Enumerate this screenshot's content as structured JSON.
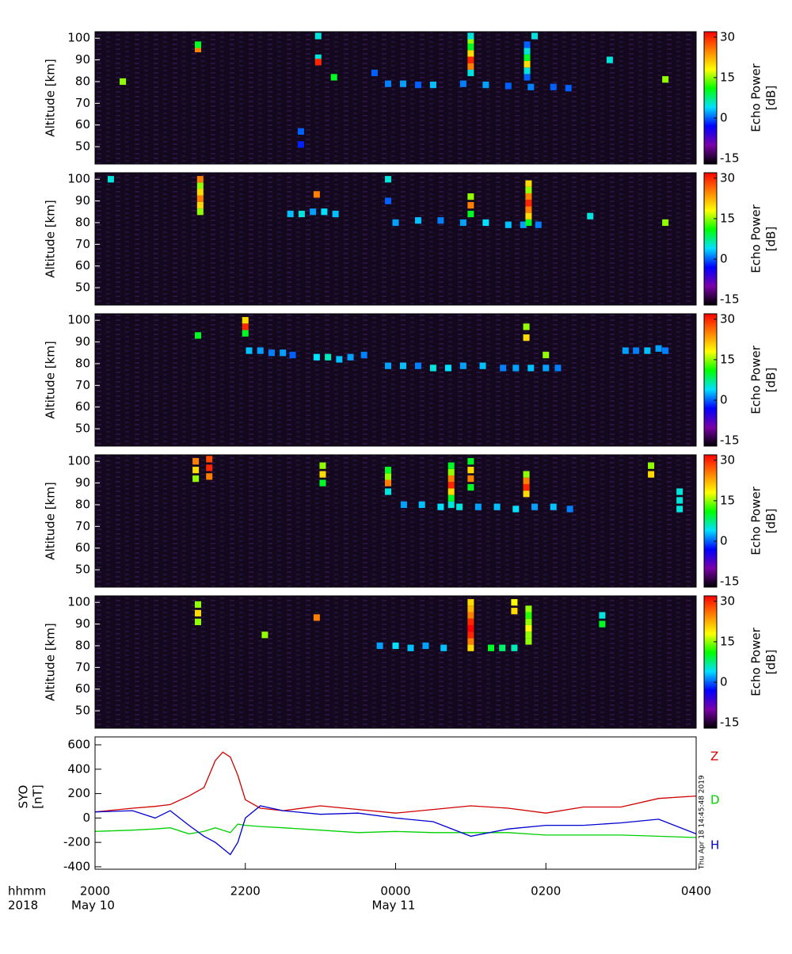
{
  "chart_data": [
    {
      "type": "heatmap",
      "ylabel": "Altitude [km]",
      "colorbar_label": [
        "Echo Power",
        "[dB]"
      ],
      "xlim": [
        0,
        8
      ],
      "ylim": [
        42,
        103
      ],
      "yticks": [
        50,
        60,
        70,
        80,
        90,
        100
      ],
      "clim": [
        -17,
        32
      ],
      "cticks": [
        -15,
        0,
        15,
        30
      ],
      "colormap": [
        "#000000",
        "#7a00a8",
        "#0000ff",
        "#00e0ff",
        "#00ff00",
        "#ffff00",
        "#ff8000",
        "#ff0000"
      ],
      "time": [
        3.9,
        4.1,
        4.3,
        4.5,
        4.9,
        5.2,
        5.5,
        5.8,
        6.1,
        6.3,
        5.0,
        5.0,
        5.0,
        5.0,
        5.0,
        5.0,
        5.0,
        5.75,
        5.75,
        5.75,
        5.75,
        5.75,
        5.75,
        0.37,
        1.37,
        1.37,
        2.97,
        2.97,
        2.97,
        3.18,
        3.72,
        7.59,
        2.74,
        2.74,
        6.85,
        5.85
      ],
      "altitude": [
        79,
        79,
        78.5,
        78.5,
        79,
        78.5,
        78,
        77.5,
        77.5,
        77,
        84,
        87,
        90,
        93,
        96,
        99,
        101,
        82,
        85,
        88,
        91,
        94,
        97,
        80,
        95,
        97,
        101,
        91,
        89,
        82,
        84,
        81,
        51,
        57,
        90,
        101
      ],
      "power": [
        1,
        2,
        0,
        3,
        1,
        2,
        0,
        1,
        0,
        0,
        5,
        25,
        30,
        20,
        10,
        15,
        5,
        0,
        5,
        20,
        10,
        5,
        0,
        15,
        25,
        10,
        5,
        5,
        30,
        10,
        0,
        15,
        -2,
        0,
        5,
        5
      ]
    },
    {
      "type": "heatmap",
      "ylabel": "Altitude [km]",
      "colorbar_label": [
        "Echo Power",
        "[dB]"
      ],
      "xlim": [
        0,
        8
      ],
      "ylim": [
        42,
        103
      ],
      "yticks": [
        50,
        60,
        70,
        80,
        90,
        100
      ],
      "clim": [
        -17,
        32
      ],
      "cticks": [
        -15,
        0,
        15,
        30
      ],
      "colormap": [
        "#000000",
        "#7a00a8",
        "#0000ff",
        "#00e0ff",
        "#00ff00",
        "#ffff00",
        "#ff8000",
        "#ff0000"
      ],
      "time": [
        2.6,
        2.75,
        2.9,
        3.05,
        3.2,
        4.0,
        4.3,
        4.6,
        4.9,
        5.2,
        5.5,
        5.7,
        5.9,
        1.4,
        1.4,
        1.4,
        1.4,
        1.4,
        1.4,
        5.77,
        5.77,
        5.77,
        5.77,
        5.77,
        5.77,
        5.77,
        5.0,
        5.0,
        5.0,
        3.9,
        3.9,
        2.95,
        7.59,
        0.21,
        6.59
      ],
      "altitude": [
        84,
        84,
        85,
        85,
        84,
        80,
        81,
        81,
        80,
        80,
        79,
        79,
        79,
        85,
        88,
        91,
        94,
        97,
        100,
        80,
        83,
        86,
        89,
        92,
        95,
        98,
        84,
        88,
        92,
        90,
        100,
        93,
        80,
        100,
        83
      ],
      "power": [
        3,
        5,
        2,
        4,
        3,
        2,
        3,
        1,
        2,
        4,
        3,
        2,
        1,
        15,
        20,
        25,
        20,
        15,
        25,
        10,
        20,
        25,
        30,
        25,
        15,
        20,
        10,
        25,
        15,
        0,
        5,
        25,
        15,
        5,
        5
      ]
    },
    {
      "type": "heatmap",
      "ylabel": "Altitude [km]",
      "colorbar_label": [
        "Echo Power",
        "[dB]"
      ],
      "xlim": [
        0,
        8
      ],
      "ylim": [
        42,
        103
      ],
      "yticks": [
        50,
        60,
        70,
        80,
        90,
        100
      ],
      "clim": [
        -17,
        32
      ],
      "cticks": [
        -15,
        0,
        15,
        30
      ],
      "colormap": [
        "#000000",
        "#7a00a8",
        "#0000ff",
        "#00e0ff",
        "#00ff00",
        "#ffff00",
        "#ff8000",
        "#ff0000"
      ],
      "time": [
        2.05,
        2.2,
        2.35,
        2.5,
        2.63,
        2.95,
        3.1,
        3.25,
        3.4,
        3.58,
        3.9,
        4.1,
        4.3,
        4.5,
        4.7,
        4.9,
        5.16,
        5.43,
        5.6,
        5.8,
        6.0,
        6.16,
        7.06,
        7.2,
        7.35,
        7.5,
        7.59,
        2.0,
        2.0,
        2.0,
        5.74,
        5.74,
        6.0,
        1.37
      ],
      "altitude": [
        86,
        86,
        85,
        85,
        84,
        83,
        83,
        82,
        83,
        84,
        79,
        79,
        79,
        78,
        78,
        79,
        79,
        78,
        78,
        78,
        78,
        78,
        86,
        86,
        86,
        87,
        86,
        94,
        97,
        100,
        92,
        97,
        84,
        93
      ],
      "power": [
        3,
        2,
        1,
        2,
        0,
        4,
        6,
        3,
        2,
        1,
        2,
        3,
        1,
        5,
        4,
        2,
        3,
        1,
        2,
        3,
        2,
        1,
        2,
        1,
        3,
        2,
        1,
        10,
        30,
        20,
        20,
        15,
        15,
        10
      ]
    },
    {
      "type": "heatmap",
      "ylabel": "Altitude [km]",
      "colorbar_label": [
        "Echo Power",
        "[dB]"
      ],
      "xlim": [
        0,
        8
      ],
      "ylim": [
        42,
        103
      ],
      "yticks": [
        50,
        60,
        70,
        80,
        90,
        100
      ],
      "clim": [
        -17,
        32
      ],
      "cticks": [
        -15,
        0,
        15,
        30
      ],
      "colormap": [
        "#000000",
        "#7a00a8",
        "#0000ff",
        "#00e0ff",
        "#00ff00",
        "#ffff00",
        "#ff8000",
        "#ff0000"
      ],
      "time": [
        4.11,
        4.35,
        4.6,
        4.85,
        5.1,
        5.35,
        5.6,
        5.85,
        6.1,
        6.32,
        1.34,
        1.34,
        1.34,
        1.52,
        1.52,
        1.52,
        4.74,
        4.74,
        4.74,
        4.74,
        4.74,
        4.74,
        4.74,
        5.0,
        5.0,
        5.0,
        5.0,
        5.74,
        5.74,
        5.74,
        5.74,
        3.03,
        3.03,
        3.03,
        3.9,
        3.9,
        3.9,
        3.9,
        7.78,
        7.78,
        7.78,
        7.4,
        7.4
      ],
      "altitude": [
        80,
        80,
        79,
        79,
        79,
        79,
        78,
        79,
        79,
        78,
        92,
        96,
        100,
        93,
        97,
        101,
        80,
        83,
        86,
        89,
        92,
        95,
        98,
        88,
        92,
        96,
        100,
        85,
        88,
        91,
        94,
        90,
        94,
        98,
        86,
        90,
        93,
        96,
        78,
        82,
        86,
        94,
        98
      ],
      "power": [
        2,
        3,
        4,
        5,
        2,
        3,
        4,
        2,
        3,
        1,
        15,
        20,
        25,
        25,
        30,
        28,
        5,
        10,
        20,
        30,
        25,
        15,
        10,
        10,
        25,
        20,
        10,
        20,
        30,
        25,
        15,
        10,
        20,
        15,
        5,
        25,
        15,
        10,
        5,
        5,
        5,
        20,
        15
      ]
    },
    {
      "type": "heatmap",
      "ylabel": "Altitude [km]",
      "colorbar_label": [
        "Echo Power",
        "[dB]"
      ],
      "xlim": [
        0,
        8
      ],
      "ylim": [
        42,
        103
      ],
      "yticks": [
        50,
        60,
        70,
        80,
        90,
        100
      ],
      "clim": [
        -17,
        32
      ],
      "cticks": [
        -15,
        0,
        15,
        30
      ],
      "colormap": [
        "#000000",
        "#7a00a8",
        "#0000ff",
        "#00e0ff",
        "#00ff00",
        "#ffff00",
        "#ff8000",
        "#ff0000"
      ],
      "time": [
        5.0,
        5.0,
        5.0,
        5.0,
        5.0,
        5.0,
        5.0,
        5.0,
        5.77,
        5.77,
        5.77,
        5.77,
        5.77,
        5.77,
        5.58,
        5.58,
        1.37,
        1.37,
        1.37,
        3.79,
        4.0,
        4.2,
        4.4,
        4.64,
        5.27,
        5.42,
        5.58,
        2.95,
        2.26,
        6.75,
        6.75
      ],
      "altitude": [
        79,
        82,
        85,
        88,
        91,
        94,
        97,
        100,
        82,
        85,
        88,
        91,
        94,
        97,
        96,
        100,
        91,
        95,
        99,
        80,
        80,
        79,
        80,
        79,
        79,
        79,
        79,
        93,
        85,
        90,
        94
      ],
      "power": [
        20,
        25,
        30,
        32,
        30,
        25,
        22,
        20,
        15,
        15,
        18,
        15,
        12,
        15,
        20,
        18,
        15,
        20,
        15,
        2,
        4,
        3,
        2,
        3,
        10,
        8,
        6,
        25,
        15,
        10,
        5
      ]
    },
    {
      "type": "line",
      "ylabel": [
        "SYO",
        "[nT]"
      ],
      "timestamp": "Thu Apr 18 14:45:48 2019",
      "x_title": "hhmm",
      "year": "2018",
      "dates": [
        {
          "value": 0,
          "label": "May 10"
        },
        {
          "value": 4,
          "label": "May 11"
        }
      ],
      "xlim": [
        0,
        8
      ],
      "ylim": [
        -420,
        665
      ],
      "xticks": [
        {
          "value": 0,
          "label": "2000"
        },
        {
          "value": 2,
          "label": "2200"
        },
        {
          "value": 4,
          "label": "0000"
        },
        {
          "value": 6,
          "label": "0200"
        },
        {
          "value": 8,
          "label": "0400"
        }
      ],
      "yticks": [
        -400,
        -200,
        0,
        200,
        400,
        600
      ],
      "x": [
        0,
        0.5,
        0.8,
        1,
        1.25,
        1.45,
        1.6,
        1.7,
        1.8,
        1.9,
        2,
        2.2,
        2.5,
        3,
        3.5,
        4,
        4.5,
        5,
        5.5,
        6,
        6.5,
        7,
        7.5,
        8
      ],
      "series": [
        {
          "name": "Z",
          "color": "#d00000",
          "values": [
            50,
            80,
            95,
            110,
            180,
            250,
            470,
            540,
            500,
            350,
            150,
            80,
            60,
            100,
            70,
            40,
            70,
            100,
            80,
            40,
            90,
            90,
            160,
            180
          ]
        },
        {
          "name": "D",
          "color": "#00d000",
          "values": [
            -110,
            -100,
            -90,
            -80,
            -130,
            -110,
            -80,
            -100,
            -120,
            -50,
            -60,
            -70,
            -80,
            -100,
            -120,
            -110,
            -120,
            -120,
            -120,
            -140,
            -140,
            -140,
            -150,
            -160
          ]
        },
        {
          "name": "H",
          "color": "#0000d0",
          "values": [
            50,
            60,
            0,
            60,
            -60,
            -150,
            -200,
            -250,
            -300,
            -200,
            0,
            100,
            60,
            30,
            40,
            0,
            -30,
            -150,
            -90,
            -60,
            -60,
            -40,
            -10,
            -130
          ]
        }
      ]
    }
  ]
}
